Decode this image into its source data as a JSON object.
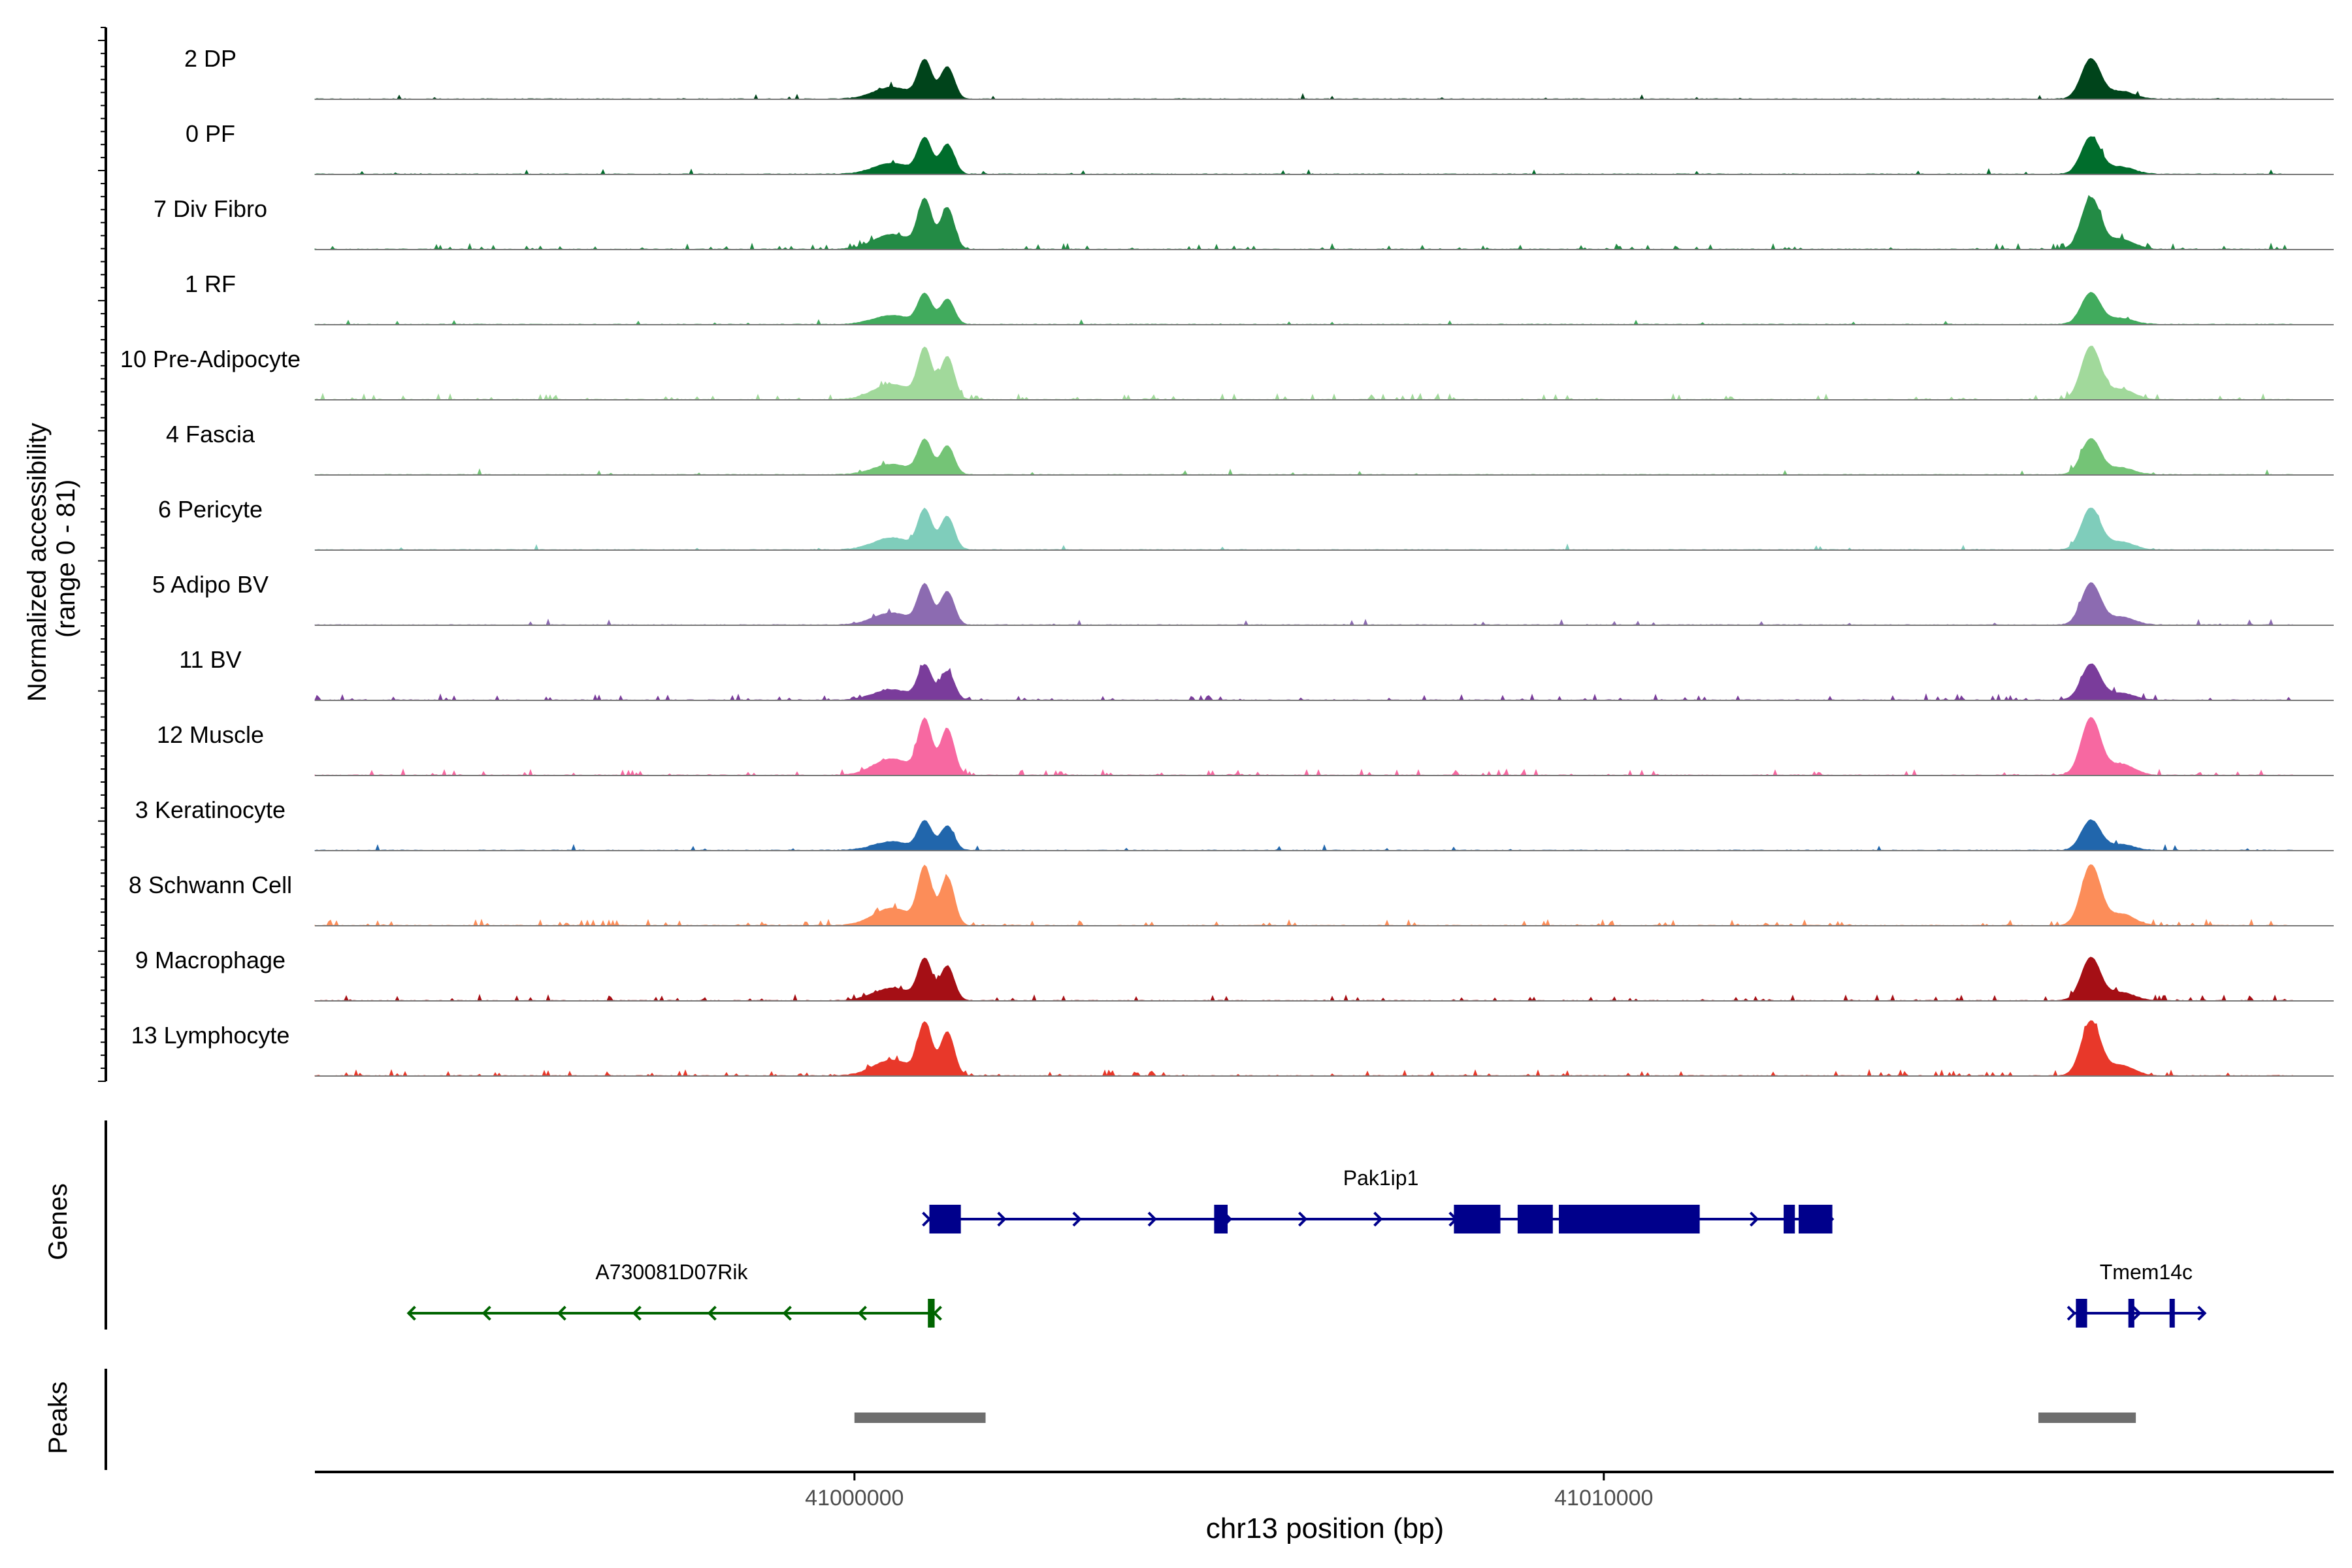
{
  "chart_data": {
    "type": "area",
    "ylabel_line1": "Normalized accessibility",
    "ylabel_line2": "(range 0 - 81)",
    "ylim": [
      0,
      81
    ],
    "xlabel": "chr13 position (bp)",
    "xlim": [
      40992800,
      41019200
    ],
    "xticks": [
      {
        "value": 41000000,
        "label": "41000000"
      },
      {
        "value": 41010000,
        "label": "41010000"
      }
    ],
    "tracks_label_genes": "Genes",
    "tracks_label_peaks": "Peaks",
    "major_peaks_bp": [
      {
        "center": 41000940,
        "height": 0.58
      },
      {
        "center": 41001240,
        "height": 0.5
      },
      {
        "center": 41016500,
        "height": 0.62
      }
    ],
    "series": [
      {
        "name": "2 DP",
        "color": "#00441b",
        "peak_scale": 0.56,
        "noise": 0.02
      },
      {
        "name": "0 PF",
        "color": "#006d2c",
        "peak_scale": 0.52,
        "noise": 0.02
      },
      {
        "name": "7 Div Fibro",
        "color": "#238b45",
        "peak_scale": 0.72,
        "noise": 0.1
      },
      {
        "name": "1 RF",
        "color": "#41ab5d",
        "peak_scale": 0.44,
        "noise": 0.02
      },
      {
        "name": "10 Pre-Adipocyte",
        "color": "#a1d99b",
        "peak_scale": 0.74,
        "noise": 0.12
      },
      {
        "name": "4 Fascia",
        "color": "#74c476",
        "peak_scale": 0.5,
        "noise": 0.02
      },
      {
        "name": "6 Pericyte",
        "color": "#7fcdbb",
        "peak_scale": 0.58,
        "noise": 0.02
      },
      {
        "name": "5 Adipo BV",
        "color": "#8c6bb1",
        "peak_scale": 0.58,
        "noise": 0.04
      },
      {
        "name": "11 BV",
        "color": "#7a3c9b",
        "peak_scale": 0.5,
        "noise": 0.1
      },
      {
        "name": "12 Muscle",
        "color": "#f768a1",
        "peak_scale": 0.8,
        "noise": 0.1
      },
      {
        "name": "3 Keratinocyte",
        "color": "#2166ac",
        "peak_scale": 0.42,
        "noise": 0.02
      },
      {
        "name": "8 Schwann Cell",
        "color": "#fc8d59",
        "peak_scale": 0.84,
        "noise": 0.1
      },
      {
        "name": "9 Macrophage",
        "color": "#a50f15",
        "peak_scale": 0.6,
        "noise": 0.1
      },
      {
        "name": "13 Lymphocyte",
        "color": "#e8382a",
        "peak_scale": 0.76,
        "noise": 0.12
      }
    ],
    "genes": [
      {
        "name": "Pak1ip1",
        "strand": "+",
        "color": "#00008b",
        "row": 0,
        "start": 41001000,
        "end": 41013050,
        "exons": [
          [
            41001000,
            41001420
          ],
          [
            41004800,
            41004980
          ],
          [
            41008000,
            41008620
          ],
          [
            41008850,
            41009320
          ],
          [
            41009400,
            41011280
          ],
          [
            41012400,
            41012550
          ],
          [
            41012600,
            41013050
          ]
        ]
      },
      {
        "name": "A730081D07Rik",
        "strand": "-",
        "color": "#006400",
        "row": 1,
        "start": 40994050,
        "end": 41001070,
        "exons": [
          [
            41000980,
            41001070
          ]
        ]
      },
      {
        "name": "Tmem14c",
        "strand": "+",
        "color": "#00008b",
        "row": 1,
        "start": 41016280,
        "end": 41018020,
        "exons": [
          [
            41016300,
            41016450
          ],
          [
            41017000,
            41017080
          ],
          [
            41017550,
            41017620
          ]
        ]
      }
    ],
    "peaks": [
      {
        "start": 41000000,
        "end": 41001750
      },
      {
        "start": 41015800,
        "end": 41017100
      }
    ]
  }
}
